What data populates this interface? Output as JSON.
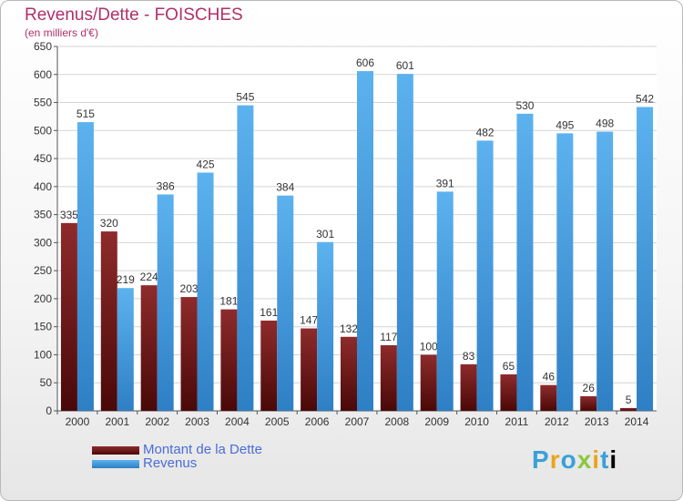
{
  "chart_data": {
    "type": "bar",
    "title": "Revenus/Dette - FOISCHES",
    "subtitle": "(en milliers d'€)",
    "categories": [
      "2000",
      "2001",
      "2002",
      "2003",
      "2004",
      "2005",
      "2006",
      "2007",
      "2008",
      "2009",
      "2010",
      "2011",
      "2012",
      "2013",
      "2014"
    ],
    "series": [
      {
        "name": "Montant de la Dette",
        "color": "#7a1e1e",
        "values": [
          335,
          320,
          224,
          203,
          181,
          161,
          147,
          132,
          117,
          100,
          83,
          65,
          46,
          26,
          5
        ]
      },
      {
        "name": "Revenus",
        "color": "#4aa3e6",
        "values": [
          515,
          219,
          386,
          425,
          545,
          384,
          301,
          606,
          601,
          391,
          482,
          530,
          495,
          498,
          542
        ]
      }
    ],
    "ylim": [
      0,
      650
    ],
    "yticks": [
      0,
      50,
      100,
      150,
      200,
      250,
      300,
      350,
      400,
      450,
      500,
      550,
      600,
      650
    ],
    "grid": true,
    "legend_position": "bottom-left"
  },
  "logo": {
    "chars": [
      "P",
      "r",
      "o",
      "x",
      "i",
      "t",
      "i"
    ]
  }
}
